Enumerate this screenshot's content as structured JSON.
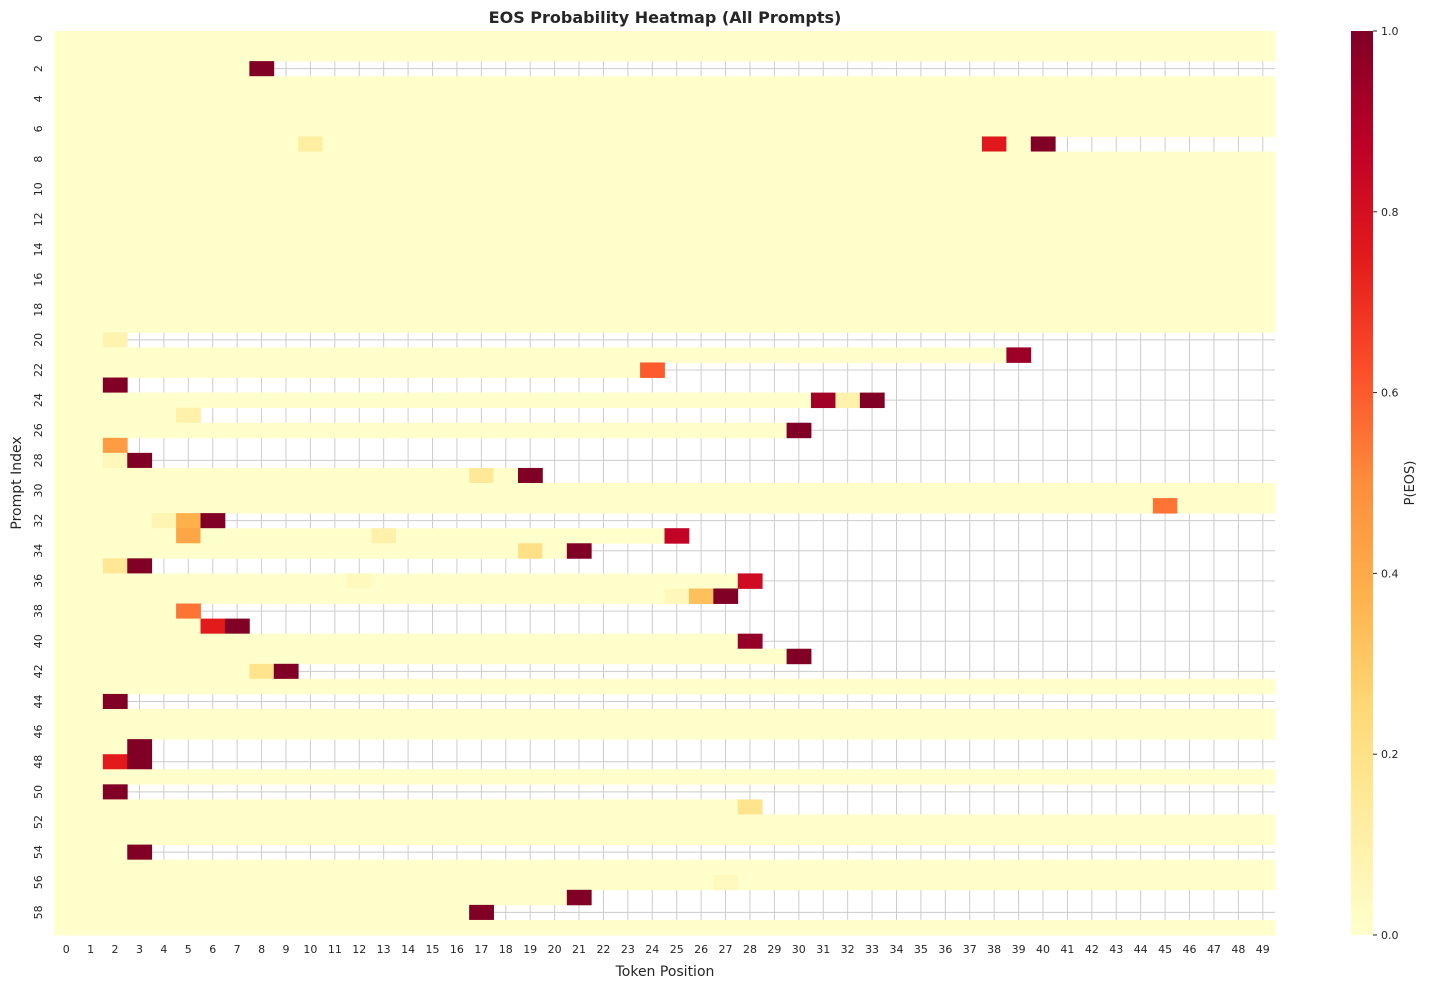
{
  "chart_data": {
    "type": "heatmap",
    "title": "EOS Probability Heatmap (All Prompts)",
    "xlabel": "Token Position",
    "ylabel": "Prompt Index",
    "colorbar_label": "P(EOS)",
    "colormap": "YlOrRd",
    "colormap_stops": [
      "#ffffcc",
      "#ffeda0",
      "#fed976",
      "#feb24c",
      "#fd8d3c",
      "#fc4e2a",
      "#e31a1c",
      "#bd0026",
      "#800026"
    ],
    "missing_color": "#ffffff",
    "grid_color": "#cccccc",
    "vmin": 0.0,
    "vmax": 1.0,
    "colorbar_ticks": [
      "0.0",
      "0.2",
      "0.4",
      "0.6",
      "0.8",
      "1.0"
    ],
    "n_cols": 50,
    "n_rows": 60,
    "x_tick_labels": [
      "0",
      "1",
      "2",
      "3",
      "4",
      "5",
      "6",
      "7",
      "8",
      "9",
      "10",
      "11",
      "12",
      "13",
      "14",
      "15",
      "16",
      "17",
      "18",
      "19",
      "20",
      "21",
      "22",
      "23",
      "24",
      "25",
      "26",
      "27",
      "28",
      "29",
      "30",
      "31",
      "32",
      "33",
      "34",
      "35",
      "36",
      "37",
      "38",
      "39",
      "40",
      "41",
      "42",
      "43",
      "44",
      "45",
      "46",
      "47",
      "48",
      "49"
    ],
    "y_tick_labels": [
      "0",
      "2",
      "4",
      "6",
      "8",
      "10",
      "12",
      "14",
      "16",
      "18",
      "20",
      "22",
      "24",
      "26",
      "28",
      "30",
      "32",
      "34",
      "36",
      "38",
      "40",
      "42",
      "44",
      "46",
      "48",
      "50",
      "52",
      "54",
      "56",
      "58"
    ],
    "default_value": 0.0,
    "rows": [
      {
        "length": 50,
        "values": {}
      },
      {
        "length": 50,
        "values": {}
      },
      {
        "length": 9,
        "values": {
          "8": 1.0
        }
      },
      {
        "length": 50,
        "values": {}
      },
      {
        "length": 50,
        "values": {}
      },
      {
        "length": 50,
        "values": {}
      },
      {
        "length": 50,
        "values": {}
      },
      {
        "length": 41,
        "values": {
          "10": 0.12,
          "38": 0.76,
          "40": 1.0
        }
      },
      {
        "length": 50,
        "values": {}
      },
      {
        "length": 50,
        "values": {}
      },
      {
        "length": 50,
        "values": {}
      },
      {
        "length": 50,
        "values": {}
      },
      {
        "length": 50,
        "values": {}
      },
      {
        "length": 50,
        "values": {}
      },
      {
        "length": 50,
        "values": {}
      },
      {
        "length": 50,
        "values": {}
      },
      {
        "length": 50,
        "values": {}
      },
      {
        "length": 50,
        "values": {}
      },
      {
        "length": 50,
        "values": {}
      },
      {
        "length": 50,
        "values": {}
      },
      {
        "length": 3,
        "values": {
          "2": 0.08
        }
      },
      {
        "length": 40,
        "values": {
          "39": 0.94
        }
      },
      {
        "length": 25,
        "values": {
          "24": 0.6
        }
      },
      {
        "length": 3,
        "values": {
          "2": 1.0
        }
      },
      {
        "length": 34,
        "values": {
          "31": 0.93,
          "32": 0.09,
          "33": 1.0
        }
      },
      {
        "length": 6,
        "values": {
          "5": 0.1
        }
      },
      {
        "length": 31,
        "values": {
          "30": 1.0
        }
      },
      {
        "length": 3,
        "values": {
          "2": 0.45
        }
      },
      {
        "length": 4,
        "values": {
          "2": 0.05,
          "3": 1.0
        }
      },
      {
        "length": 20,
        "values": {
          "17": 0.15,
          "19": 1.0
        }
      },
      {
        "length": 50,
        "values": {}
      },
      {
        "length": 50,
        "values": {
          "45": 0.55
        }
      },
      {
        "length": 7,
        "values": {
          "4": 0.07,
          "5": 0.38,
          "6": 1.0
        }
      },
      {
        "length": 26,
        "values": {
          "5": 0.42,
          "13": 0.1,
          "25": 0.86
        }
      },
      {
        "length": 22,
        "values": {
          "19": 0.2,
          "21": 1.0
        }
      },
      {
        "length": 4,
        "values": {
          "2": 0.16,
          "3": 1.0
        }
      },
      {
        "length": 29,
        "values": {
          "12": 0.04,
          "28": 0.82
        }
      },
      {
        "length": 28,
        "values": {
          "25": 0.05,
          "26": 0.33,
          "27": 1.0
        }
      },
      {
        "length": 6,
        "values": {
          "5": 0.55
        }
      },
      {
        "length": 8,
        "values": {
          "6": 0.75,
          "7": 1.0
        }
      },
      {
        "length": 29,
        "values": {
          "28": 0.96
        }
      },
      {
        "length": 31,
        "values": {
          "30": 1.0
        }
      },
      {
        "length": 10,
        "values": {
          "8": 0.18,
          "9": 1.0
        }
      },
      {
        "length": 50,
        "values": {}
      },
      {
        "length": 3,
        "values": {
          "2": 1.0
        }
      },
      {
        "length": 50,
        "values": {}
      },
      {
        "length": 50,
        "values": {}
      },
      {
        "length": 4,
        "values": {
          "3": 1.0
        }
      },
      {
        "length": 4,
        "values": {
          "2": 0.75,
          "3": 1.0
        }
      },
      {
        "length": 50,
        "values": {}
      },
      {
        "length": 3,
        "values": {
          "2": 1.0
        }
      },
      {
        "length": 29,
        "values": {
          "28": 0.18
        }
      },
      {
        "length": 50,
        "values": {}
      },
      {
        "length": 50,
        "values": {}
      },
      {
        "length": 4,
        "values": {
          "3": 1.0
        }
      },
      {
        "length": 50,
        "values": {}
      },
      {
        "length": 50,
        "values": {
          "27": 0.04
        }
      },
      {
        "length": 22,
        "values": {
          "21": 1.0
        }
      },
      {
        "length": 18,
        "values": {
          "17": 1.0
        }
      },
      {
        "length": 50,
        "values": {}
      }
    ]
  }
}
